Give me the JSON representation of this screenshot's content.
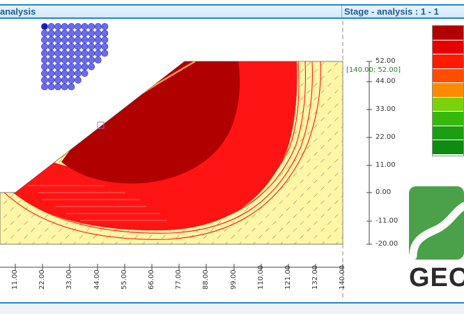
{
  "header": {
    "left_title": "analysis",
    "right_title": "Stage - analysis : 1 - 1"
  },
  "canvas": {
    "point_label": "[140.00; 52.00]",
    "y_axis_ticks": [
      "52.00",
      "44.00",
      "33.00",
      "22.00",
      "11.00",
      "0.00",
      "-11.00",
      "-20.00"
    ],
    "x_axis_ticks": [
      "11.00",
      "22.00",
      "33.00",
      "44.00",
      "55.00",
      "66.00",
      "77.00",
      "88.00",
      "99.00",
      "110.00",
      "121.00",
      "132.00",
      "140.00"
    ]
  },
  "legend": {
    "colors": [
      "#b00000",
      "#e60000",
      "#ff1a00",
      "#ff4d00",
      "#ff8a00",
      "#7ad20a",
      "#36b80e",
      "#1d9e12",
      "#0f8a12"
    ]
  },
  "logo": {
    "text": "GEO",
    "brand_color": "#4aa14a"
  },
  "colors": {
    "soil": "#fff6a6",
    "slip_dark": "#b00000",
    "slip_red": "#ff1414",
    "critical": "#ff9a4a",
    "anchors": "#6a6cf0"
  }
}
